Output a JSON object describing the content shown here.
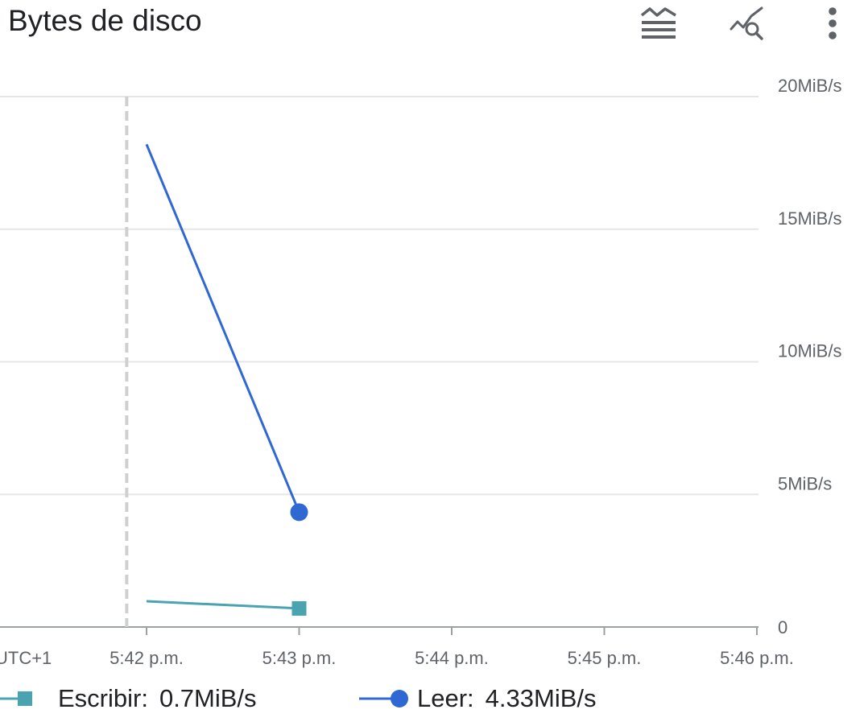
{
  "header": {
    "title": "Bytes de disco",
    "icons": [
      "legend-toggle-icon",
      "explore-chart-icon",
      "more-vert-icon"
    ]
  },
  "chart_data": {
    "type": "line",
    "title": "Bytes de disco",
    "x_axis": {
      "timezone_label": "UTC+1",
      "ticks": [
        "5:42 p.m.",
        "5:43 p.m.",
        "5:44 p.m.",
        "5:45 p.m.",
        "5:46 p.m."
      ],
      "range": [
        "5:41 p.m.",
        "5:46 p.m."
      ]
    },
    "y_axis": {
      "position": "right",
      "ticks": [
        "0",
        "5MiB/s",
        "10MiB/s",
        "15MiB/s",
        "20MiB/s"
      ],
      "range": [
        0,
        20
      ],
      "unit": "MiB/s",
      "grid": true
    },
    "marker_line_x": "5:41.87 p.m.",
    "series": [
      {
        "name": "Escribir",
        "color": "#4aa3b0",
        "marker": "square",
        "points": [
          {
            "x": "5:42 p.m.",
            "y": 0.97
          },
          {
            "x": "5:43 p.m.",
            "y": 0.7
          }
        ]
      },
      {
        "name": "Leer",
        "color": "#2f68d3",
        "marker": "circle",
        "points": [
          {
            "x": "5:42 p.m.",
            "y": 18.2
          },
          {
            "x": "5:43 p.m.",
            "y": 4.33
          }
        ]
      }
    ]
  },
  "legend": {
    "write": {
      "name": "Escribir:",
      "value": "0.7MiB/s"
    },
    "read": {
      "name": "Leer:",
      "value": "4.33MiB/s"
    }
  }
}
